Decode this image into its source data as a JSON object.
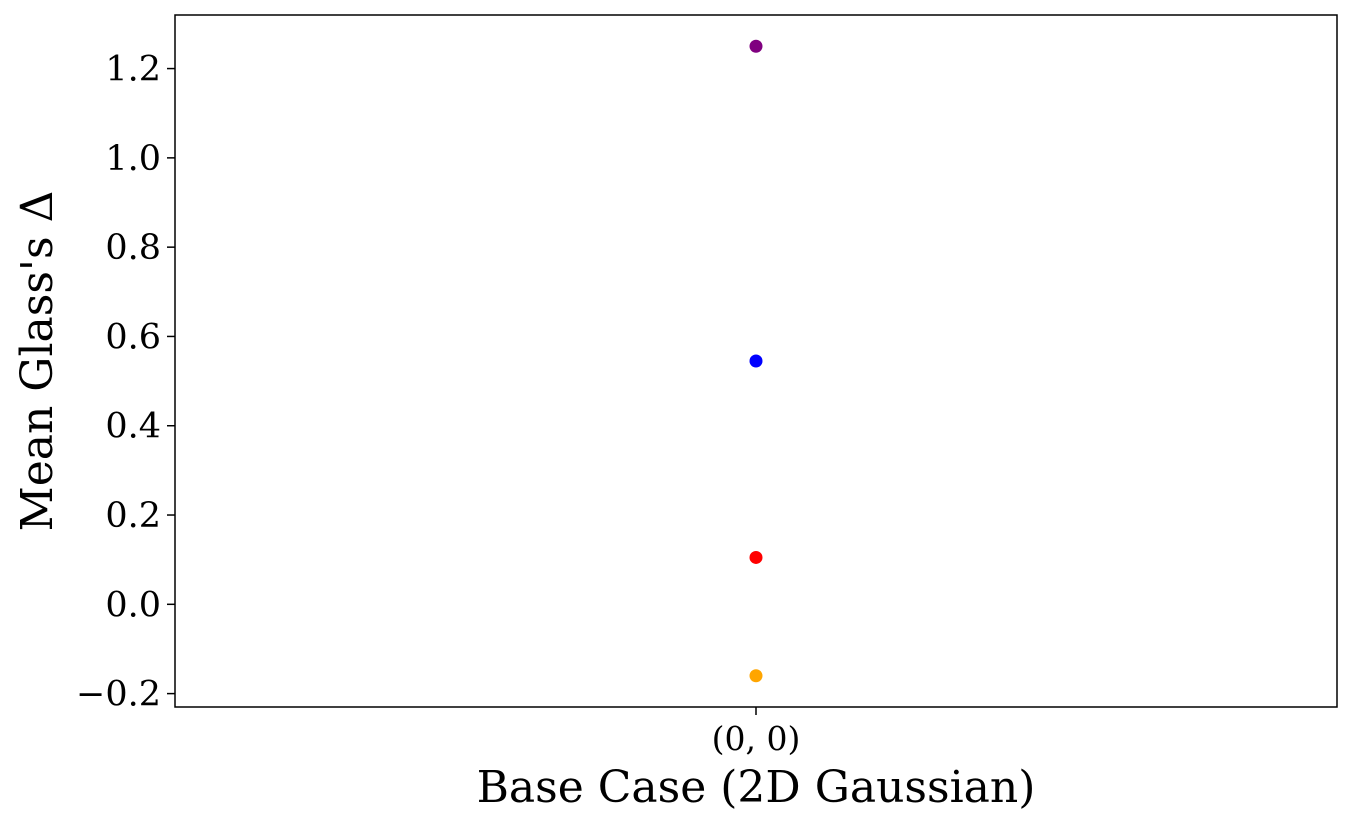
{
  "chart_data": {
    "type": "scatter",
    "title": "",
    "xlabel": "Base Case (2D Gaussian)",
    "ylabel": "Mean Glass's Δ",
    "categories": [
      "(0, 0)"
    ],
    "ylim": [
      -0.23,
      1.32
    ],
    "yticks": [
      -0.2,
      0.0,
      0.2,
      0.4,
      0.6,
      0.8,
      1.0,
      1.2
    ],
    "ytick_labels": [
      "−0.2",
      "0.0",
      "0.2",
      "0.4",
      "0.6",
      "0.8",
      "1.0",
      "1.2"
    ],
    "grid": false,
    "legend": null,
    "points": [
      {
        "category": "(0, 0)",
        "value": 1.25,
        "color": "#800080"
      },
      {
        "category": "(0, 0)",
        "value": 0.545,
        "color": "#0000ff"
      },
      {
        "category": "(0, 0)",
        "value": 0.105,
        "color": "#ff0000"
      },
      {
        "category": "(0, 0)",
        "value": -0.16,
        "color": "#ffa500"
      }
    ]
  }
}
